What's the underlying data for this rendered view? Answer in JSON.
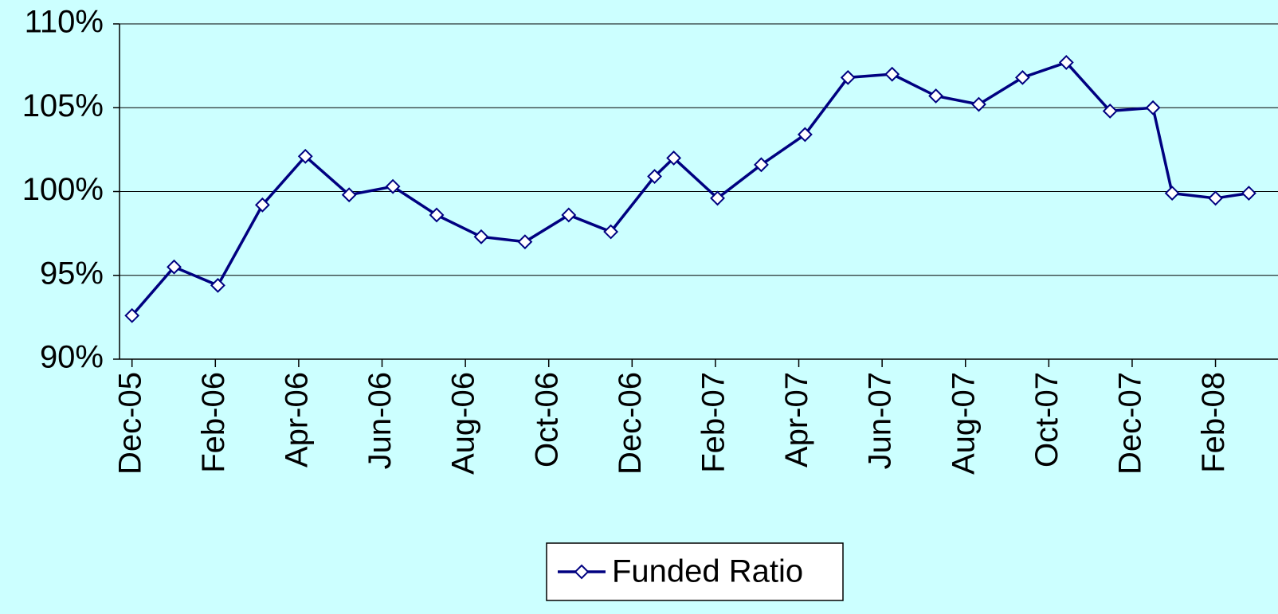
{
  "chart_data": {
    "type": "line",
    "x": [
      0,
      1.01,
      2.06,
      3.13,
      4.16,
      5.21,
      6.26,
      7.31,
      8.38,
      9.43,
      10.48,
      11.49,
      12.54,
      13.0,
      14.05,
      15.1,
      16.15,
      17.18,
      18.24,
      19.29,
      20.32,
      21.37,
      22.42,
      23.47,
      24.5,
      24.96,
      26.0,
      26.8
    ],
    "series": [
      {
        "name": "Funded Ratio",
        "color": "#000080",
        "values": [
          92.6,
          95.5,
          94.4,
          99.2,
          102.1,
          99.8,
          100.3,
          98.6,
          97.3,
          97.0,
          98.6,
          97.6,
          100.9,
          102.0,
          99.6,
          101.6,
          103.4,
          106.8,
          107.0,
          105.7,
          105.2,
          106.8,
          107.7,
          104.8,
          105.0,
          99.9,
          99.6,
          99.9
        ]
      }
    ],
    "xlim": [
      -0.3,
      27.5
    ],
    "xticks": [
      {
        "value": 0,
        "label": "Dec-05"
      },
      {
        "value": 2,
        "label": "Feb-06"
      },
      {
        "value": 4,
        "label": "Apr-06"
      },
      {
        "value": 6,
        "label": "Jun-06"
      },
      {
        "value": 8,
        "label": "Aug-06"
      },
      {
        "value": 10,
        "label": "Oct-06"
      },
      {
        "value": 12,
        "label": "Dec-06"
      },
      {
        "value": 14,
        "label": "Feb-07"
      },
      {
        "value": 16,
        "label": "Apr-07"
      },
      {
        "value": 18,
        "label": "Jun-07"
      },
      {
        "value": 20,
        "label": "Aug-07"
      },
      {
        "value": 22,
        "label": "Oct-07"
      },
      {
        "value": 24,
        "label": "Dec-07"
      },
      {
        "value": 26,
        "label": "Feb-08"
      }
    ],
    "ylim": [
      90,
      110
    ],
    "yticks": [
      {
        "value": 90,
        "label": "90%"
      },
      {
        "value": 95,
        "label": "95%"
      },
      {
        "value": 100,
        "label": "100%"
      },
      {
        "value": 105,
        "label": "105%"
      },
      {
        "value": 110,
        "label": "110%"
      }
    ],
    "grid": true,
    "legend": "bottom"
  }
}
